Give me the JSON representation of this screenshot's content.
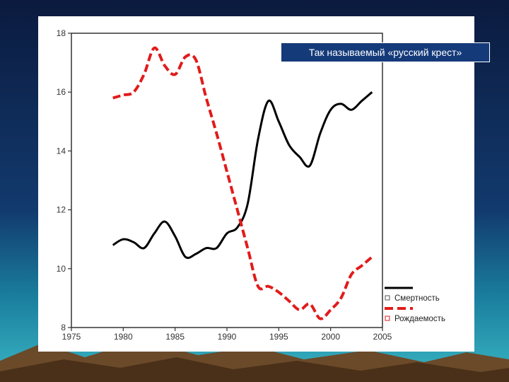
{
  "slide": {
    "title": "Так называемый «русский крест»"
  },
  "colors": {
    "background_top": "#0b1a3e",
    "background_bottom": "#3ab6c4",
    "title_box": "#143a7a",
    "mortality": "#000000",
    "birth_rate": "#e21b1b"
  },
  "chart_data": {
    "type": "line",
    "title": "Так называемый «русский крест»",
    "xlabel": "",
    "ylabel": "",
    "xlim": [
      1975,
      2005
    ],
    "ylim": [
      8,
      18
    ],
    "x_ticks": [
      "1975",
      "1980",
      "1985",
      "1990",
      "1995",
      "2000",
      "2005"
    ],
    "y_ticks": [
      "8",
      "10",
      "12",
      "14",
      "16",
      "18"
    ],
    "grid": false,
    "legend_position": "bottom-right",
    "series": [
      {
        "name": "Смертность",
        "style": "solid",
        "color": "#000000",
        "x": [
          1979,
          1980,
          1981,
          1982,
          1983,
          1984,
          1985,
          1986,
          1987,
          1988,
          1989,
          1990,
          1991,
          1992,
          1993,
          1994,
          1995,
          1996,
          1997,
          1998,
          1999,
          2000,
          2001,
          2002,
          2003,
          2004
        ],
        "y": [
          10.8,
          11.0,
          10.9,
          10.7,
          11.2,
          11.6,
          11.1,
          10.4,
          10.5,
          10.7,
          10.7,
          11.2,
          11.4,
          12.2,
          14.4,
          15.7,
          15.0,
          14.2,
          13.8,
          13.5,
          14.6,
          15.4,
          15.6,
          15.4,
          15.7,
          16.0
        ]
      },
      {
        "name": "Рождаемость",
        "style": "dashed",
        "color": "#e21b1b",
        "x": [
          1979,
          1980,
          1981,
          1982,
          1983,
          1984,
          1985,
          1986,
          1987,
          1988,
          1989,
          1990,
          1991,
          1992,
          1993,
          1994,
          1995,
          1996,
          1997,
          1998,
          1999,
          2000,
          2001,
          2002,
          2003,
          2004
        ],
        "y": [
          15.8,
          15.9,
          16.0,
          16.6,
          17.5,
          16.9,
          16.6,
          17.2,
          17.1,
          15.8,
          14.6,
          13.3,
          12.0,
          10.7,
          9.4,
          9.4,
          9.2,
          8.9,
          8.6,
          8.8,
          8.3,
          8.6,
          9.0,
          9.8,
          10.1,
          10.4
        ]
      }
    ]
  }
}
